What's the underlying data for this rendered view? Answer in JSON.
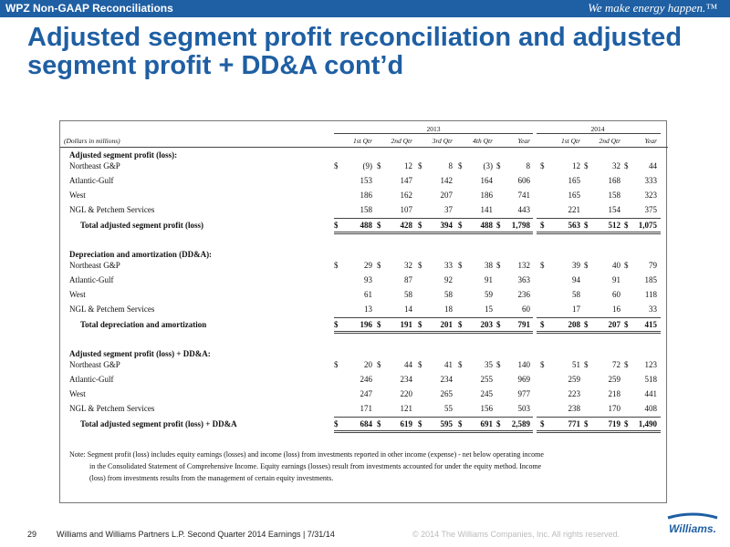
{
  "header": {
    "label": "WPZ Non-GAAP Reconciliations",
    "tagline": "We make energy happen.™"
  },
  "title": "Adjusted segment profit reconciliation and adjusted segment profit + DD&A cont’d",
  "table": {
    "units_label": "(Dollars in millions)",
    "years": [
      "2013",
      "2014"
    ],
    "columns_2013": [
      "1st Qtr",
      "2nd Qtr",
      "3rd Qtr",
      "4th Qtr",
      "Year"
    ],
    "columns_2014": [
      "1st Qtr",
      "2nd Qtr",
      "Year"
    ],
    "sections": [
      {
        "heading": "Adjusted segment profit (loss):",
        "rows": [
          {
            "label": "Northeast G&P",
            "values": [
              "(9)",
              "12",
              "8",
              "(3)",
              "8",
              "12",
              "32",
              "44"
            ],
            "dollar": true
          },
          {
            "label": "Atlantic-Gulf",
            "values": [
              "153",
              "147",
              "142",
              "164",
              "606",
              "165",
              "168",
              "333"
            ]
          },
          {
            "label": "West",
            "values": [
              "186",
              "162",
              "207",
              "186",
              "741",
              "165",
              "158",
              "323"
            ]
          },
          {
            "label": "NGL & Petchem Services",
            "values": [
              "158",
              "107",
              "37",
              "141",
              "443",
              "221",
              "154",
              "375"
            ]
          }
        ],
        "total": {
          "label": "Total adjusted segment profit (loss)",
          "values": [
            "488",
            "428",
            "394",
            "488",
            "1,798",
            "563",
            "512",
            "1,075"
          ]
        }
      },
      {
        "heading": "Depreciation and amortization (DD&A):",
        "rows": [
          {
            "label": "Northeast G&P",
            "values": [
              "29",
              "32",
              "33",
              "38",
              "132",
              "39",
              "40",
              "79"
            ],
            "dollar": true
          },
          {
            "label": "Atlantic-Gulf",
            "values": [
              "93",
              "87",
              "92",
              "91",
              "363",
              "94",
              "91",
              "185"
            ]
          },
          {
            "label": "West",
            "values": [
              "61",
              "58",
              "58",
              "59",
              "236",
              "58",
              "60",
              "118"
            ]
          },
          {
            "label": "NGL & Petchem Services",
            "values": [
              "13",
              "14",
              "18",
              "15",
              "60",
              "17",
              "16",
              "33"
            ]
          }
        ],
        "total": {
          "label": "Total depreciation and amortization",
          "values": [
            "196",
            "191",
            "201",
            "203",
            "791",
            "208",
            "207",
            "415"
          ]
        }
      },
      {
        "heading": "Adjusted segment profit (loss) + DD&A:",
        "rows": [
          {
            "label": "Northeast G&P",
            "values": [
              "20",
              "44",
              "41",
              "35",
              "140",
              "51",
              "72",
              "123"
            ],
            "dollar": true
          },
          {
            "label": "Atlantic-Gulf",
            "values": [
              "246",
              "234",
              "234",
              "255",
              "969",
              "259",
              "259",
              "518"
            ]
          },
          {
            "label": "West",
            "values": [
              "247",
              "220",
              "265",
              "245",
              "977",
              "223",
              "218",
              "441"
            ]
          },
          {
            "label": "NGL & Petchem Services",
            "values": [
              "171",
              "121",
              "55",
              "156",
              "503",
              "238",
              "170",
              "408"
            ]
          }
        ],
        "total": {
          "label": "Total adjusted segment profit (loss) + DD&A",
          "values": [
            "684",
            "619",
            "595",
            "691",
            "2,589",
            "771",
            "719",
            "1,490"
          ]
        }
      }
    ],
    "note_lines": [
      "Note: Segment profit (loss) includes equity earnings (losses) and income (loss) from investments reported in other income (expense) - net below operating income",
      "in the Consolidated Statement of Comprehensive Income. Equity earnings (losses) result from investments accounted for under the equity method. Income",
      "(loss) from investments results from the management of certain equity investments."
    ],
    "dollar_sign": "$"
  },
  "footer": {
    "page": "29",
    "caption": "Williams and Williams Partners L.P. Second Quarter 2014 Earnings  |  7/31/14",
    "copyright": "© 2014 The Williams Companies, Inc. All rights reserved."
  },
  "logo": {
    "text": "Williams."
  },
  "colors": {
    "brand_blue": "#1f5fa3"
  }
}
